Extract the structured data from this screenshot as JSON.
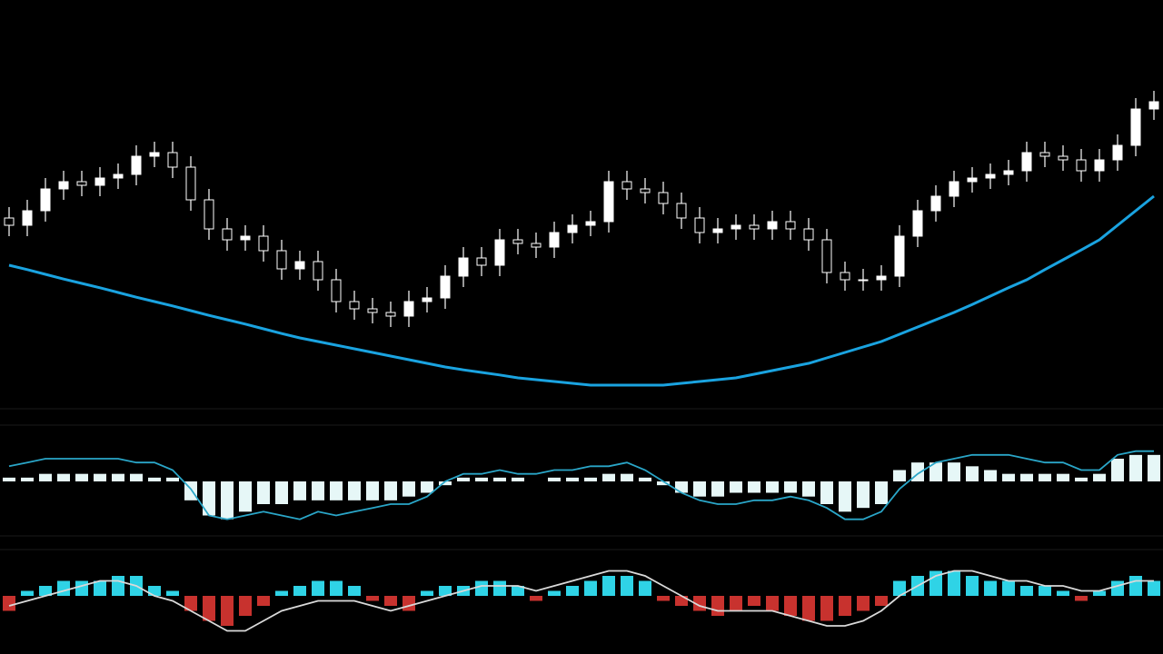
{
  "chart_data": [
    {
      "type": "candlestick",
      "color": "#ffffff",
      "ylim": [
        0,
        100
      ],
      "open": [
        50,
        48,
        52,
        58,
        60,
        59,
        61,
        62,
        67,
        68,
        64,
        55,
        47,
        44,
        45,
        41,
        36,
        38,
        33,
        27,
        25,
        24,
        23,
        27,
        28,
        34,
        39,
        37,
        44,
        43,
        42,
        46,
        48,
        49,
        60,
        58,
        57,
        54,
        50,
        46,
        47,
        48,
        47,
        49,
        47,
        44,
        35,
        33,
        33,
        34,
        45,
        52,
        56,
        60,
        61,
        62,
        63,
        68,
        67,
        66,
        63,
        66,
        70,
        80
      ],
      "high": [
        53,
        55,
        61,
        63,
        63,
        64,
        65,
        70,
        71,
        71,
        67,
        58,
        50,
        48,
        48,
        44,
        41,
        41,
        36,
        30,
        28,
        27,
        30,
        31,
        37,
        42,
        42,
        47,
        47,
        46,
        49,
        51,
        52,
        63,
        63,
        61,
        60,
        57,
        53,
        50,
        51,
        51,
        52,
        52,
        50,
        47,
        38,
        36,
        37,
        48,
        55,
        59,
        63,
        64,
        65,
        66,
        71,
        71,
        70,
        69,
        69,
        73,
        83,
        85
      ],
      "low": [
        45,
        45,
        49,
        55,
        56,
        56,
        58,
        59,
        64,
        61,
        52,
        44,
        41,
        41,
        38,
        33,
        33,
        30,
        24,
        22,
        21,
        20,
        20,
        24,
        25,
        31,
        34,
        34,
        40,
        39,
        39,
        43,
        45,
        46,
        55,
        54,
        51,
        47,
        43,
        43,
        44,
        44,
        44,
        44,
        41,
        32,
        30,
        30,
        30,
        31,
        42,
        49,
        53,
        57,
        58,
        59,
        60,
        64,
        63,
        60,
        60,
        63,
        67,
        77
      ],
      "close": [
        48,
        52,
        58,
        60,
        59,
        61,
        62,
        67,
        68,
        64,
        55,
        47,
        44,
        45,
        41,
        36,
        38,
        33,
        27,
        25,
        24,
        23,
        27,
        28,
        34,
        39,
        37,
        44,
        43,
        42,
        46,
        48,
        49,
        60,
        58,
        57,
        54,
        50,
        46,
        47,
        48,
        47,
        49,
        47,
        44,
        35,
        33,
        33,
        34,
        45,
        52,
        56,
        60,
        61,
        62,
        63,
        68,
        67,
        66,
        63,
        66,
        70,
        80,
        82
      ],
      "ma": {
        "color": "#1aa3e0",
        "values": [
          37,
          35.8,
          34.5,
          33.2,
          32,
          30.8,
          29.5,
          28.2,
          27,
          25.8,
          24.5,
          23.2,
          22,
          20.8,
          19.5,
          18.2,
          17,
          16,
          15,
          14,
          13,
          12,
          11,
          10,
          9,
          8.2,
          7.5,
          6.8,
          6,
          5.5,
          5,
          4.5,
          4,
          4,
          4,
          4,
          4,
          4.5,
          5,
          5.5,
          6,
          7,
          8,
          9,
          10,
          11.5,
          13,
          14.5,
          16,
          18,
          20,
          22,
          24,
          26.2,
          28.5,
          30.8,
          33,
          35.8,
          38.5,
          41.2,
          44,
          48,
          52,
          56
        ]
      }
    },
    {
      "type": "bar",
      "color": "#e6f7f7",
      "ylim": [
        -12,
        12
      ],
      "values": [
        1,
        1,
        2,
        2,
        2,
        2,
        2,
        2,
        1,
        1,
        -5,
        -9,
        -10,
        -8,
        -6,
        -6,
        -5,
        -5,
        -5,
        -5,
        -5,
        -5,
        -4,
        -3,
        -1,
        1,
        1,
        1,
        1,
        0,
        1,
        1,
        1,
        2,
        2,
        1,
        -1,
        -3,
        -4,
        -4,
        -3,
        -3,
        -3,
        -3,
        -4,
        -6,
        -8,
        -7,
        -6,
        3,
        5,
        5,
        5,
        4,
        3,
        2,
        2,
        2,
        2,
        1,
        2,
        6,
        7,
        7
      ],
      "line": {
        "color": "#2aa6c8",
        "values": [
          4,
          5,
          6,
          6,
          6,
          6,
          6,
          5,
          5,
          3,
          -2,
          -9,
          -10,
          -9,
          -8,
          -9,
          -10,
          -8,
          -9,
          -8,
          -7,
          -6,
          -6,
          -4,
          0,
          2,
          2,
          3,
          2,
          2,
          3,
          3,
          4,
          4,
          5,
          3,
          0,
          -3,
          -5,
          -6,
          -6,
          -5,
          -5,
          -4,
          -5,
          -7,
          -10,
          -10,
          -8,
          -2,
          2,
          5,
          6,
          7,
          7,
          7,
          6,
          5,
          5,
          3,
          3,
          7,
          8,
          8
        ]
      }
    },
    {
      "type": "bar",
      "positive_color": "#2fd3e6",
      "negative_color": "#c8322e",
      "ylim": [
        -8,
        8
      ],
      "values": [
        -3,
        1,
        2,
        3,
        3,
        3,
        4,
        4,
        2,
        1,
        -3,
        -5,
        -6,
        -4,
        -2,
        1,
        2,
        3,
        3,
        2,
        -1,
        -2,
        -3,
        1,
        2,
        2,
        3,
        3,
        2,
        -1,
        1,
        2,
        3,
        4,
        4,
        3,
        -1,
        -2,
        -3,
        -4,
        -3,
        -2,
        -3,
        -4,
        -5,
        -5,
        -4,
        -3,
        -2,
        3,
        4,
        5,
        5,
        4,
        3,
        3,
        2,
        2,
        1,
        -1,
        1,
        3,
        4,
        3
      ],
      "line": {
        "color": "#d9d9d9",
        "values": [
          -2,
          -1,
          0,
          1,
          2,
          3,
          3,
          2,
          0,
          -1,
          -3,
          -5,
          -7,
          -7,
          -5,
          -3,
          -2,
          -1,
          -1,
          -1,
          -2,
          -3,
          -2,
          -1,
          0,
          1,
          2,
          2,
          2,
          1,
          2,
          3,
          4,
          5,
          5,
          4,
          2,
          0,
          -2,
          -3,
          -3,
          -3,
          -3,
          -4,
          -5,
          -6,
          -6,
          -5,
          -3,
          0,
          2,
          4,
          5,
          5,
          4,
          3,
          3,
          2,
          2,
          1,
          1,
          2,
          3,
          3
        ]
      }
    }
  ]
}
